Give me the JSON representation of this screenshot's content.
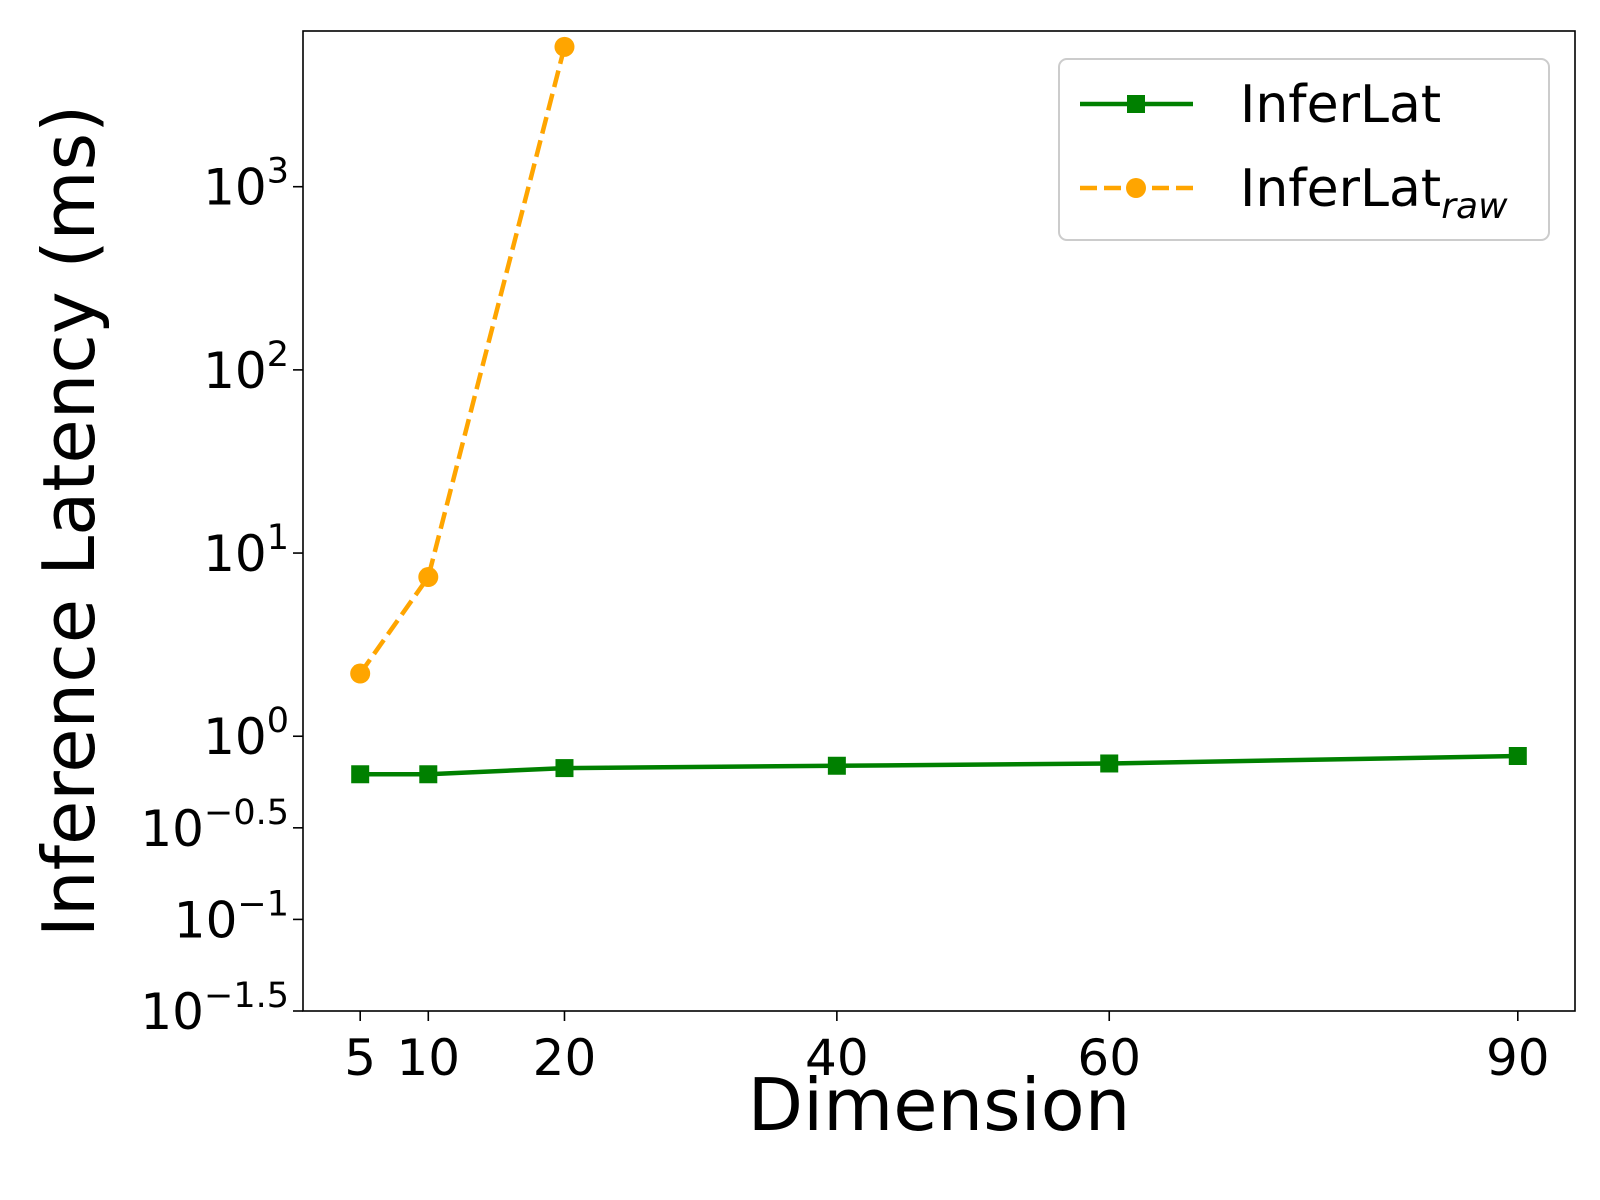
{
  "chart_data": {
    "type": "line",
    "title": "",
    "xlabel": "Dimension",
    "ylabel": "Inference Latency (ms)",
    "xscale": "linear",
    "yscale": "log",
    "xlim": [
      0.8,
      94.2
    ],
    "ylim_log10": [
      -1.5,
      3.85
    ],
    "xticks": [
      {
        "value": 5,
        "label": "5"
      },
      {
        "value": 10,
        "label": "10"
      },
      {
        "value": 20,
        "label": "20"
      },
      {
        "value": 40,
        "label": "40"
      },
      {
        "value": 60,
        "label": "60"
      },
      {
        "value": 90,
        "label": "90"
      }
    ],
    "yticks": [
      {
        "log10": -1.5,
        "base": "10",
        "exp": "−1.5"
      },
      {
        "log10": -1,
        "base": "10",
        "exp": "−1"
      },
      {
        "log10": -0.5,
        "base": "10",
        "exp": "−0.5"
      },
      {
        "log10": 0,
        "base": "10",
        "exp": "0"
      },
      {
        "log10": 1,
        "base": "10",
        "exp": "1"
      },
      {
        "log10": 2,
        "base": "10",
        "exp": "2"
      },
      {
        "log10": 3,
        "base": "10",
        "exp": "3"
      }
    ],
    "legend_position": "upper-right",
    "series": [
      {
        "name": "InferLat",
        "name_sub": "",
        "color": "#008000",
        "style": "solid",
        "marker": "square",
        "x": [
          5,
          10,
          20,
          40,
          60,
          90
        ],
        "y": [
          0.62,
          0.62,
          0.67,
          0.69,
          0.71,
          0.78
        ]
      },
      {
        "name": "InferLat",
        "name_sub": "raw",
        "color": "#FFA500",
        "style": "dashed",
        "marker": "circle",
        "x": [
          5,
          10,
          20
        ],
        "y": [
          2.2,
          7.4,
          5800
        ]
      }
    ]
  }
}
